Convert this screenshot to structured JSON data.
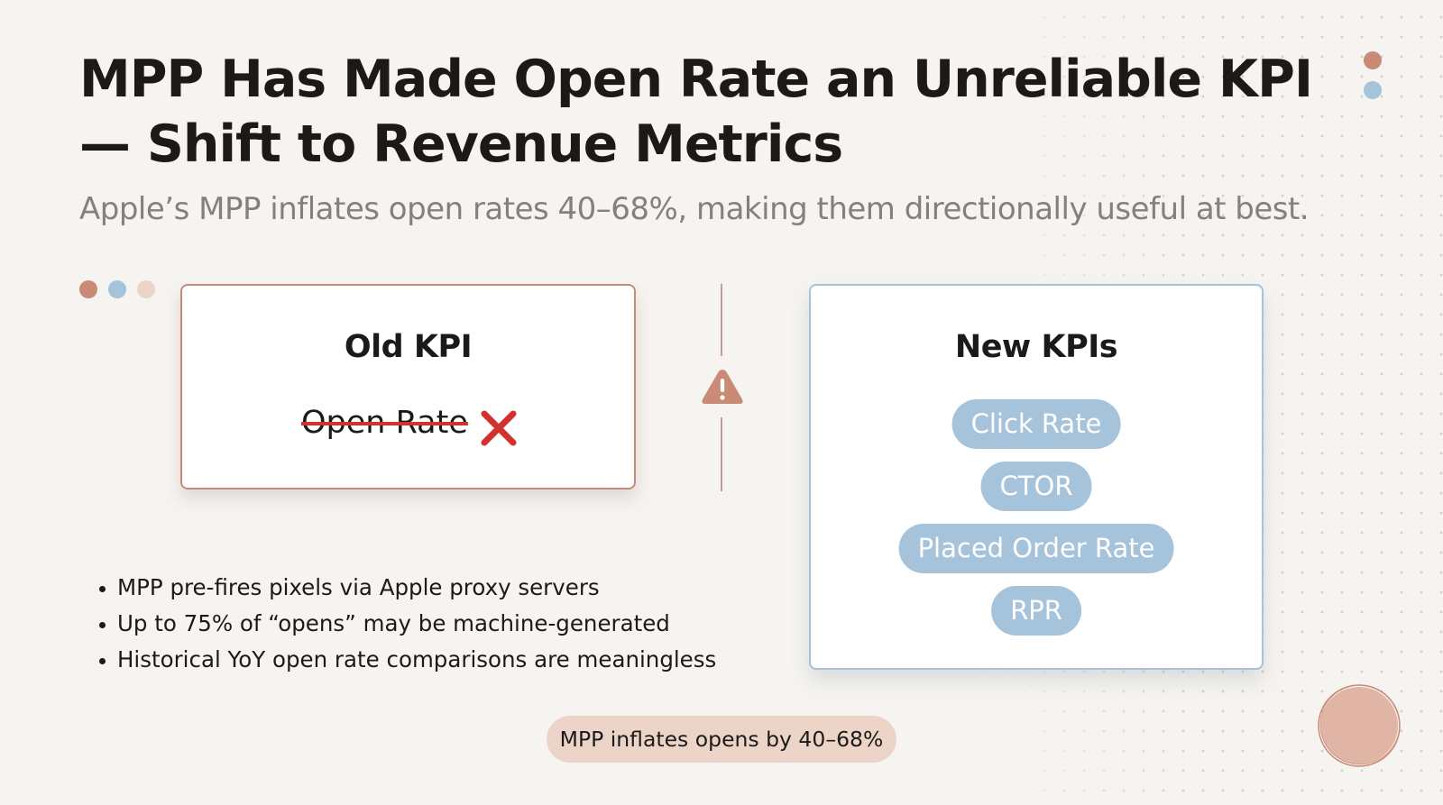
{
  "slide": {
    "title": "MPP Has Made Open Rate an Unreliable KPI — Shift to Revenue Metrics",
    "subtitle": "Apple’s MPP inflates open rates 40–68%, making them directionally useful at best."
  },
  "old_card": {
    "heading": "Old KPI",
    "metric": "Open Rate",
    "status_icon": "x-mark-icon"
  },
  "divider": {
    "icon": "warning-icon"
  },
  "new_card": {
    "heading": "New KPIs",
    "metrics": [
      "Click Rate",
      "CTOR",
      "Placed Order Rate",
      "RPR"
    ]
  },
  "bullets": [
    "MPP pre-fires pixels via Apple proxy servers",
    "Up to 75% of “opens” may be machine-generated",
    "Historical YoY open rate comparisons are meaningless"
  ],
  "callout": "MPP inflates opens by 40–68%",
  "colors": {
    "background": "#f6f4f1",
    "accent_terracotta": "#c98a76",
    "accent_blue": "#a6c3dc",
    "accent_blush": "#ecd4c8",
    "strike_red": "#d3312f",
    "text_dark": "#1c1a19",
    "text_muted": "#85807c"
  }
}
